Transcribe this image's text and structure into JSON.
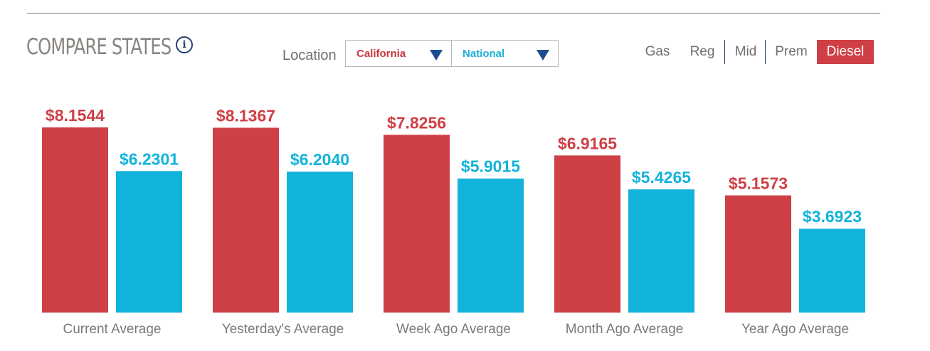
{
  "header": {
    "title": "COMPARE STATES",
    "info_glyph": "i"
  },
  "location": {
    "label": "Location",
    "state": "California",
    "comparison": "National"
  },
  "fuel_tabs": {
    "items": [
      "Gas",
      "Reg",
      "Mid",
      "Prem",
      "Diesel"
    ],
    "active": "Diesel"
  },
  "colors": {
    "state": "#cf3f46",
    "national": "#12b3db",
    "active_tab": "#cf3f46",
    "dropdown_arrow": "#1c4d8f"
  },
  "chart_data": {
    "type": "bar",
    "categories": [
      "Current Average",
      "Yesterday's Average",
      "Week Ago Average",
      "Month Ago Average",
      "Year Ago Average"
    ],
    "series": [
      {
        "name": "California",
        "values": [
          8.1544,
          8.1367,
          7.8256,
          6.9165,
          5.1573
        ],
        "labels": [
          "$8.1544",
          "$8.1367",
          "$7.8256",
          "$6.9165",
          "$5.1573"
        ]
      },
      {
        "name": "National",
        "values": [
          6.2301,
          6.204,
          5.9015,
          5.4265,
          3.6923
        ],
        "labels": [
          "$6.2301",
          "$6.2040",
          "$5.9015",
          "$5.4265",
          "$3.6923"
        ]
      }
    ],
    "legend": "none",
    "grid": false
  }
}
